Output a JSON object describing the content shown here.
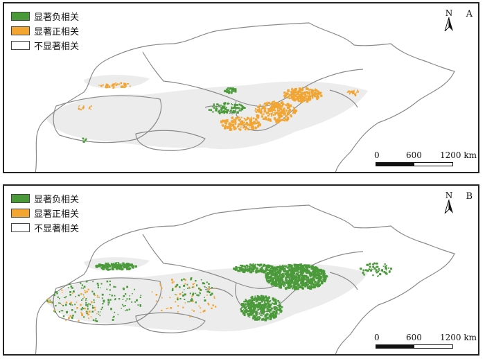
{
  "colors": {
    "negative": "#4a9a3a",
    "positive": "#f2a531",
    "not_significant": "#ffffff",
    "study_area": "#ececec",
    "boundary": "#8a8a8a"
  },
  "legend": [
    {
      "label": "显著负相关",
      "color": "#4a9a3a"
    },
    {
      "label": "显著正相关",
      "color": "#f2a531"
    },
    {
      "label": "不显著相关",
      "color": "#ffffff"
    }
  ],
  "north_arrow": {
    "letter": "N",
    "icon": "north-arrow-icon"
  },
  "scale_bar": {
    "ticks": [
      "0",
      "600",
      "1200 km"
    ]
  },
  "panels": [
    {
      "id": "A",
      "label": "A"
    },
    {
      "id": "B",
      "label": "B"
    }
  ]
}
